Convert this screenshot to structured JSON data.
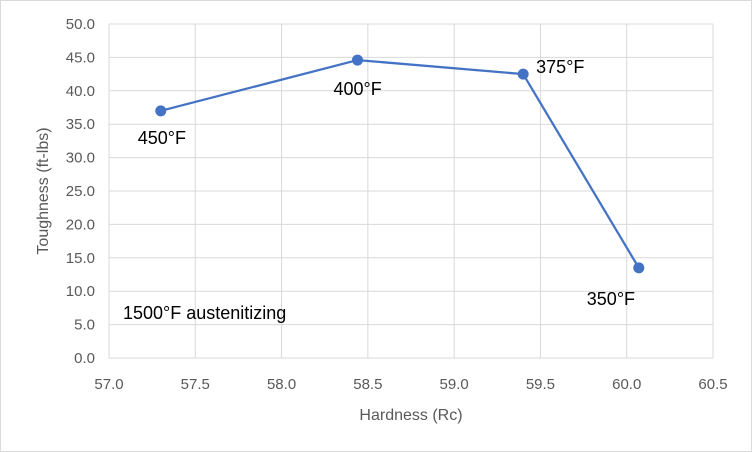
{
  "chart_data": {
    "type": "scatter",
    "title": "",
    "xlabel": "Hardness (Rc)",
    "ylabel": "Toughness (ft-lbs)",
    "xlim": [
      57.0,
      60.5
    ],
    "ylim": [
      0.0,
      50.0
    ],
    "x_ticks": [
      "57.0",
      "57.5",
      "58.0",
      "58.5",
      "59.0",
      "59.5",
      "60.0",
      "60.5"
    ],
    "y_ticks": [
      "0.0",
      "5.0",
      "10.0",
      "15.0",
      "20.0",
      "25.0",
      "30.0",
      "35.0",
      "40.0",
      "45.0",
      "50.0"
    ],
    "grid": true,
    "legend": "none",
    "series": [
      {
        "color": "#4472c4",
        "lines": true,
        "markers": true,
        "points": [
          {
            "x": 57.3,
            "y": 37.0,
            "label": "450°F"
          },
          {
            "x": 58.44,
            "y": 44.6,
            "label": "400°F"
          },
          {
            "x": 59.4,
            "y": 42.5,
            "label": "375°F"
          },
          {
            "x": 60.07,
            "y": 13.5,
            "label": "350°F"
          }
        ]
      }
    ],
    "annotation": "1500°F austenitizing"
  }
}
